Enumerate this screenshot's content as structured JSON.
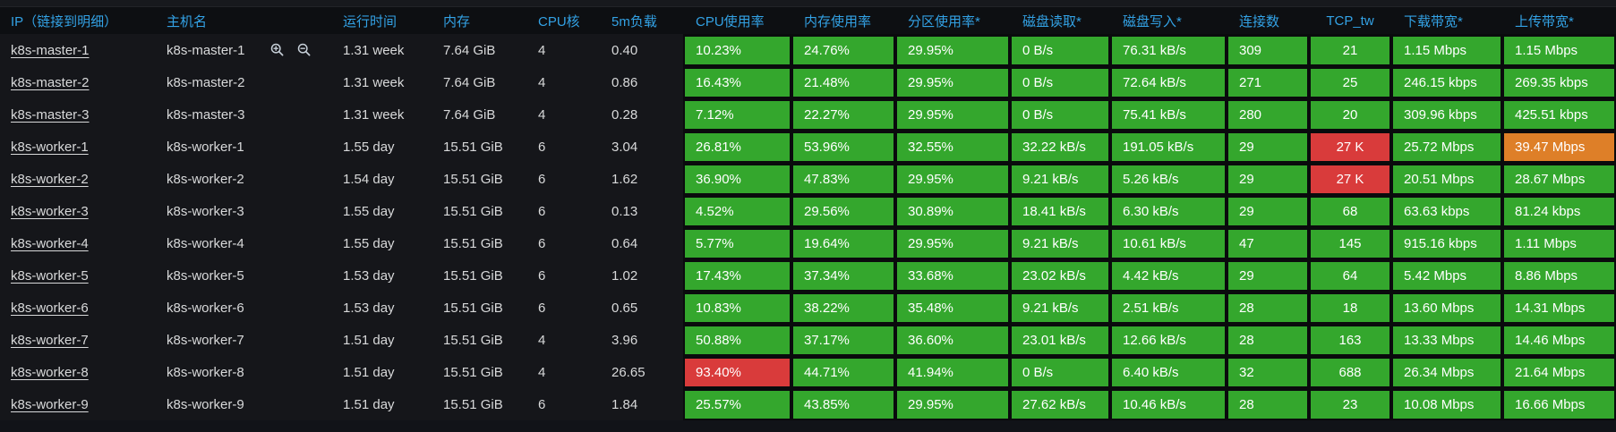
{
  "colors": {
    "green": "#34a72d",
    "red": "#d93b3b",
    "orange": "#de7f28",
    "header_blue": "#33a2e5"
  },
  "icons": {
    "row_hover_actions": [
      "zoom-in-icon",
      "zoom-out-icon"
    ]
  },
  "table": {
    "columns": [
      {
        "key": "ip",
        "label": "IP（链接到明细）",
        "colored": false,
        "link": true
      },
      {
        "key": "hostname",
        "label": "主机名",
        "colored": false
      },
      {
        "key": "uptime",
        "label": "运行时间",
        "colored": false
      },
      {
        "key": "memory",
        "label": "内存",
        "colored": false
      },
      {
        "key": "cpu_cores",
        "label": "CPU核",
        "colored": false
      },
      {
        "key": "load_5m",
        "label": "5m负载",
        "colored": false
      },
      {
        "key": "cpu_usage",
        "label": "CPU使用率",
        "colored": true
      },
      {
        "key": "mem_usage",
        "label": "内存使用率",
        "colored": true
      },
      {
        "key": "partition_usage",
        "label": "分区使用率*",
        "colored": true
      },
      {
        "key": "disk_read",
        "label": "磁盘读取*",
        "colored": true
      },
      {
        "key": "disk_write",
        "label": "磁盘写入*",
        "colored": true
      },
      {
        "key": "connections",
        "label": "连接数",
        "colored": true
      },
      {
        "key": "tcp_tw",
        "label": "TCP_tw",
        "colored": true,
        "align": "center"
      },
      {
        "key": "download_bw",
        "label": "下载带宽*",
        "colored": true
      },
      {
        "key": "upload_bw",
        "label": "上传带宽*",
        "colored": true
      }
    ],
    "rows": [
      {
        "ip": "k8s-master-1",
        "hostname": "k8s-master-1",
        "uptime": "1.31 week",
        "memory": "7.64 GiB",
        "cpu_cores": "4",
        "load_5m": "0.40",
        "cpu_usage": "10.23%",
        "mem_usage": "24.76%",
        "partition_usage": "29.95%",
        "disk_read": "0 B/s",
        "disk_write": "76.31 kB/s",
        "connections": "309",
        "tcp_tw": "21",
        "download_bw": "1.15 Mbps",
        "upload_bw": "1.15 Mbps",
        "hover_icons": true
      },
      {
        "ip": "k8s-master-2",
        "hostname": "k8s-master-2",
        "uptime": "1.31 week",
        "memory": "7.64 GiB",
        "cpu_cores": "4",
        "load_5m": "0.86",
        "cpu_usage": "16.43%",
        "mem_usage": "21.48%",
        "partition_usage": "29.95%",
        "disk_read": "0 B/s",
        "disk_write": "72.64 kB/s",
        "connections": "271",
        "tcp_tw": "25",
        "download_bw": "246.15 kbps",
        "upload_bw": "269.35 kbps"
      },
      {
        "ip": "k8s-master-3",
        "hostname": "k8s-master-3",
        "uptime": "1.31 week",
        "memory": "7.64 GiB",
        "cpu_cores": "4",
        "load_5m": "0.28",
        "cpu_usage": "7.12%",
        "mem_usage": "22.27%",
        "partition_usage": "29.95%",
        "disk_read": "0 B/s",
        "disk_write": "75.41 kB/s",
        "connections": "280",
        "tcp_tw": "20",
        "download_bw": "309.96 kbps",
        "upload_bw": "425.51 kbps"
      },
      {
        "ip": "k8s-worker-1",
        "hostname": "k8s-worker-1",
        "uptime": "1.55 day",
        "memory": "15.51 GiB",
        "cpu_cores": "6",
        "load_5m": "3.04",
        "cpu_usage": "26.81%",
        "mem_usage": "53.96%",
        "partition_usage": "32.55%",
        "disk_read": "32.22 kB/s",
        "disk_write": "191.05 kB/s",
        "connections": "29",
        "tcp_tw": "27 K",
        "download_bw": "25.72 Mbps",
        "upload_bw": "39.47 Mbps",
        "cell_colors": {
          "tcp_tw": "red",
          "upload_bw": "orange"
        }
      },
      {
        "ip": "k8s-worker-2",
        "hostname": "k8s-worker-2",
        "uptime": "1.54 day",
        "memory": "15.51 GiB",
        "cpu_cores": "6",
        "load_5m": "1.62",
        "cpu_usage": "36.90%",
        "mem_usage": "47.83%",
        "partition_usage": "29.95%",
        "disk_read": "9.21 kB/s",
        "disk_write": "5.26 kB/s",
        "connections": "29",
        "tcp_tw": "27 K",
        "download_bw": "20.51 Mbps",
        "upload_bw": "28.67 Mbps",
        "cell_colors": {
          "tcp_tw": "red"
        }
      },
      {
        "ip": "k8s-worker-3",
        "hostname": "k8s-worker-3",
        "uptime": "1.55 day",
        "memory": "15.51 GiB",
        "cpu_cores": "6",
        "load_5m": "0.13",
        "cpu_usage": "4.52%",
        "mem_usage": "29.56%",
        "partition_usage": "30.89%",
        "disk_read": "18.41 kB/s",
        "disk_write": "6.30 kB/s",
        "connections": "29",
        "tcp_tw": "68",
        "download_bw": "63.63 kbps",
        "upload_bw": "81.24 kbps"
      },
      {
        "ip": "k8s-worker-4",
        "hostname": "k8s-worker-4",
        "uptime": "1.55 day",
        "memory": "15.51 GiB",
        "cpu_cores": "6",
        "load_5m": "0.64",
        "cpu_usage": "5.77%",
        "mem_usage": "19.64%",
        "partition_usage": "29.95%",
        "disk_read": "9.21 kB/s",
        "disk_write": "10.61 kB/s",
        "connections": "47",
        "tcp_tw": "145",
        "download_bw": "915.16 kbps",
        "upload_bw": "1.11 Mbps"
      },
      {
        "ip": "k8s-worker-5",
        "hostname": "k8s-worker-5",
        "uptime": "1.53 day",
        "memory": "15.51 GiB",
        "cpu_cores": "6",
        "load_5m": "1.02",
        "cpu_usage": "17.43%",
        "mem_usage": "37.34%",
        "partition_usage": "33.68%",
        "disk_read": "23.02 kB/s",
        "disk_write": "4.42 kB/s",
        "connections": "29",
        "tcp_tw": "64",
        "download_bw": "5.42 Mbps",
        "upload_bw": "8.86 Mbps"
      },
      {
        "ip": "k8s-worker-6",
        "hostname": "k8s-worker-6",
        "uptime": "1.53 day",
        "memory": "15.51 GiB",
        "cpu_cores": "6",
        "load_5m": "0.65",
        "cpu_usage": "10.83%",
        "mem_usage": "38.22%",
        "partition_usage": "35.48%",
        "disk_read": "9.21 kB/s",
        "disk_write": "2.51 kB/s",
        "connections": "28",
        "tcp_tw": "18",
        "download_bw": "13.60 Mbps",
        "upload_bw": "14.31 Mbps"
      },
      {
        "ip": "k8s-worker-7",
        "hostname": "k8s-worker-7",
        "uptime": "1.51 day",
        "memory": "15.51 GiB",
        "cpu_cores": "4",
        "load_5m": "3.96",
        "cpu_usage": "50.88%",
        "mem_usage": "37.17%",
        "partition_usage": "36.60%",
        "disk_read": "23.01 kB/s",
        "disk_write": "12.66 kB/s",
        "connections": "28",
        "tcp_tw": "163",
        "download_bw": "13.33 Mbps",
        "upload_bw": "14.46 Mbps"
      },
      {
        "ip": "k8s-worker-8",
        "hostname": "k8s-worker-8",
        "uptime": "1.51 day",
        "memory": "15.51 GiB",
        "cpu_cores": "4",
        "load_5m": "26.65",
        "cpu_usage": "93.40%",
        "mem_usage": "44.71%",
        "partition_usage": "41.94%",
        "disk_read": "0 B/s",
        "disk_write": "6.40 kB/s",
        "connections": "32",
        "tcp_tw": "688",
        "download_bw": "26.34 Mbps",
        "upload_bw": "21.64 Mbps",
        "cell_colors": {
          "cpu_usage": "red"
        }
      },
      {
        "ip": "k8s-worker-9",
        "hostname": "k8s-worker-9",
        "uptime": "1.51 day",
        "memory": "15.51 GiB",
        "cpu_cores": "6",
        "load_5m": "1.84",
        "cpu_usage": "25.57%",
        "mem_usage": "43.85%",
        "partition_usage": "29.95%",
        "disk_read": "27.62 kB/s",
        "disk_write": "10.46 kB/s",
        "connections": "28",
        "tcp_tw": "23",
        "download_bw": "10.08 Mbps",
        "upload_bw": "16.66 Mbps"
      }
    ]
  }
}
